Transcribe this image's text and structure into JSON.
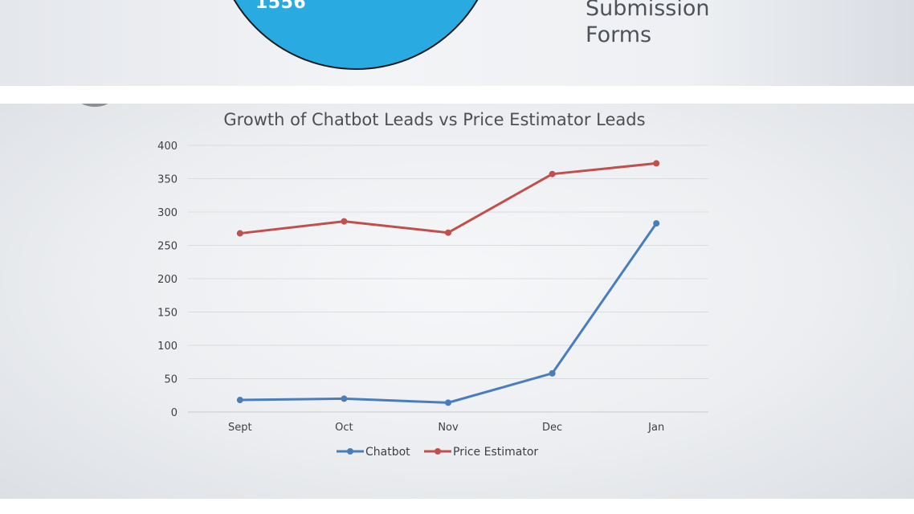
{
  "previous_slide": {
    "pie_label": "1556",
    "legend_text": "Submission\nForms",
    "pie_color": "#29abe2"
  },
  "chart_data": {
    "type": "line",
    "title": "Growth of Chatbot Leads vs Price Estimator Leads",
    "xlabel": "",
    "ylabel": "",
    "categories": [
      "Sept",
      "Oct",
      "Nov",
      "Dec",
      "Jan"
    ],
    "y_ticks": [
      "0",
      "50",
      "100",
      "150",
      "200",
      "250",
      "300",
      "350",
      "400"
    ],
    "ylim": [
      0,
      400
    ],
    "grid": true,
    "legend_position": "bottom",
    "series": [
      {
        "name": "Chatbot",
        "color": "#4a7ebb",
        "values": [
          18,
          20,
          14,
          58,
          283
        ]
      },
      {
        "name": "Price Estimator",
        "color": "#c0504d",
        "values": [
          268,
          286,
          269,
          357,
          373
        ]
      }
    ]
  }
}
